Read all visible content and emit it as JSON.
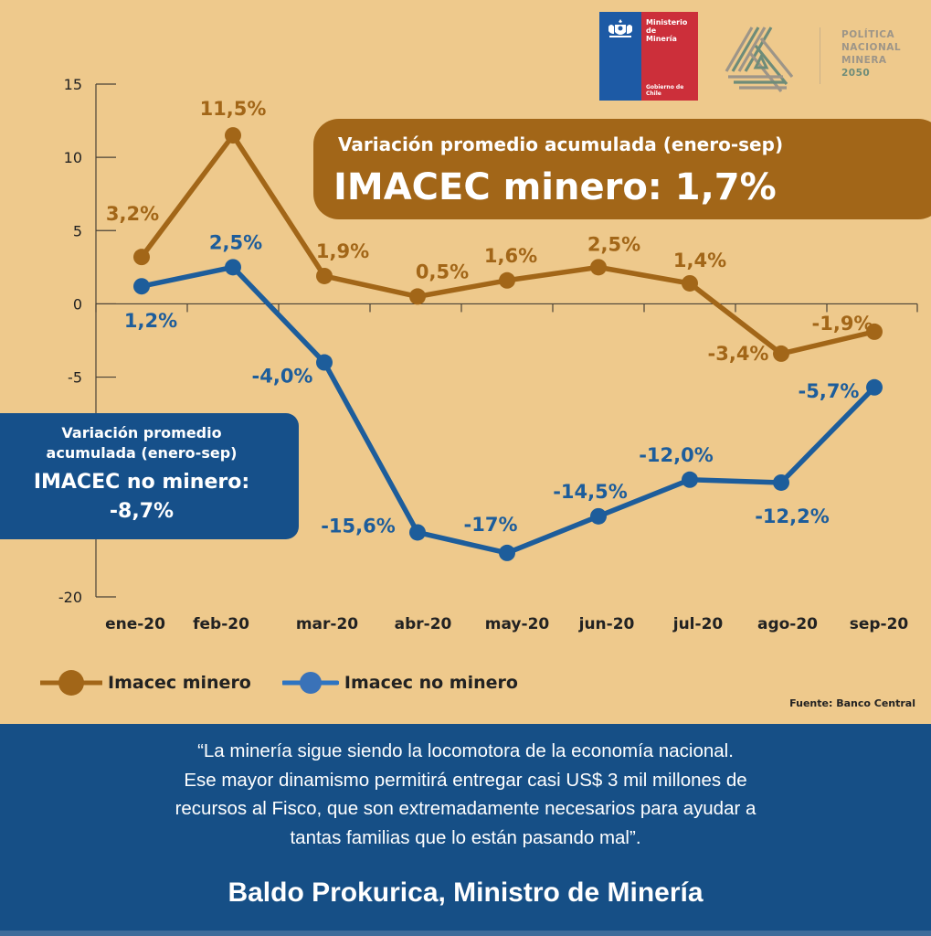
{
  "header": {
    "ministry_logo": {
      "icon": "chile-coat-of-arms-icon",
      "name": "Ministerio de Minería",
      "name_line1": "Ministerio de",
      "name_line2": "Minería",
      "government": "Gobierno de Chile"
    },
    "policy_logo": {
      "icon": "triangle-stripes-logo",
      "line1": "POLÍTICA",
      "line2": "NACIONAL",
      "line3": "MINERA",
      "line4": "2050"
    }
  },
  "callouts": {
    "minero": {
      "subtitle": "Variación promedio acumulada (enero-sep)",
      "headline": "IMACEC minero: 1,7%"
    },
    "no_minero": {
      "subtitle_line1": "Variación promedio",
      "subtitle_line2": "acumulada (enero-sep)",
      "headline_line1": "IMACEC no minero:",
      "headline_line2": "-8,7%"
    }
  },
  "colors": {
    "background": "#eec98c",
    "minero": "#a26618",
    "no_minero": "#1d5d9b",
    "footer": "#164f86"
  },
  "chart_data": {
    "type": "line",
    "title": "",
    "xlabel": "",
    "ylabel": "",
    "categories": [
      "ene-20",
      "feb-20",
      "mar-20",
      "abr-20",
      "may-20",
      "jun-20",
      "jul-20",
      "ago-20",
      "sep-20"
    ],
    "ylim": [
      -20,
      15
    ],
    "yticks": [
      15,
      10,
      5,
      0,
      -5,
      -20
    ],
    "ytick_labels": [
      "15",
      "10",
      "5",
      "0",
      "-5",
      "-20"
    ],
    "grid": false,
    "legend_position": "bottom-left",
    "series": [
      {
        "name": "Imacec minero",
        "color": "#a26618",
        "values": [
          3.2,
          11.5,
          1.9,
          0.5,
          1.6,
          2.5,
          1.4,
          -3.4,
          -1.9
        ],
        "labels": [
          "3,2%",
          "11,5%",
          "1,9%",
          "0,5%",
          "1,6%",
          "2,5%",
          "1,4%",
          "-3,4%",
          "-1,9%"
        ]
      },
      {
        "name": "Imacec no minero",
        "color": "#1d5d9b",
        "values": [
          1.2,
          2.5,
          -4.0,
          -15.6,
          -17.0,
          -14.5,
          -12.0,
          -12.2,
          -5.7
        ],
        "labels": [
          "1,2%",
          "2,5%",
          "-4,0%",
          "-15,6%",
          "-17%",
          "-14,5%",
          "-12,0%",
          "-12,2%",
          "-5,7%"
        ]
      }
    ]
  },
  "source": "Fuente: Banco Central",
  "footer": {
    "quote_line1": "“La minería sigue siendo la locomotora de la economía nacional.",
    "quote_line2": "Ese mayor dinamismo permitirá entregar casi US$ 3 mil millones de",
    "quote_line3": "recursos al Fisco, que son extremadamente necesarios para ayudar a",
    "quote_line4": "tantas familias que lo están pasando mal”.",
    "author": "Baldo Prokurica, Ministro de Minería"
  }
}
